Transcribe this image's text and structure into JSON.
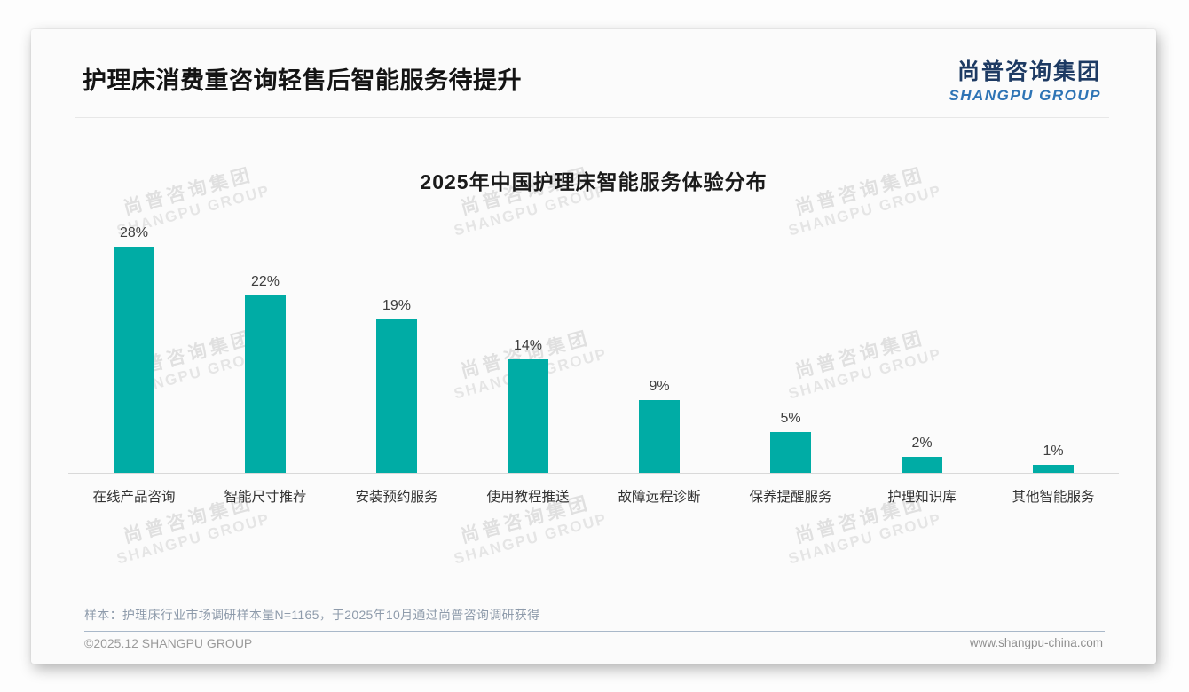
{
  "header": {
    "title": "护理床消费重咨询轻售后智能服务待提升",
    "logo_cn": "尚普咨询集团",
    "logo_en": "SHANGPU GROUP"
  },
  "watermark": {
    "line1": "尚普咨询集团",
    "line2": "SHANGPU GROUP"
  },
  "chart_data": {
    "type": "bar",
    "title": "2025年中国护理床智能服务体验分布",
    "categories": [
      "在线产品咨询",
      "智能尺寸推荐",
      "安装预约服务",
      "使用教程推送",
      "故障远程诊断",
      "保养提醒服务",
      "护理知识库",
      "其他智能服务"
    ],
    "values": [
      28,
      22,
      19,
      14,
      9,
      5,
      2,
      1
    ],
    "value_labels": [
      "28%",
      "22%",
      "19%",
      "14%",
      "9%",
      "5%",
      "2%",
      "1%"
    ],
    "bar_color": "#00aca5",
    "xlabel": "",
    "ylabel": "",
    "ylim": [
      0,
      30
    ],
    "grid": false,
    "legend": "none"
  },
  "note": "样本：护理床行业市场调研样本量N=1165，于2025年10月通过尚普咨询调研获得",
  "footer": {
    "copyright": "©2025.12 SHANGPU GROUP",
    "website": "www.shangpu-china.com"
  }
}
